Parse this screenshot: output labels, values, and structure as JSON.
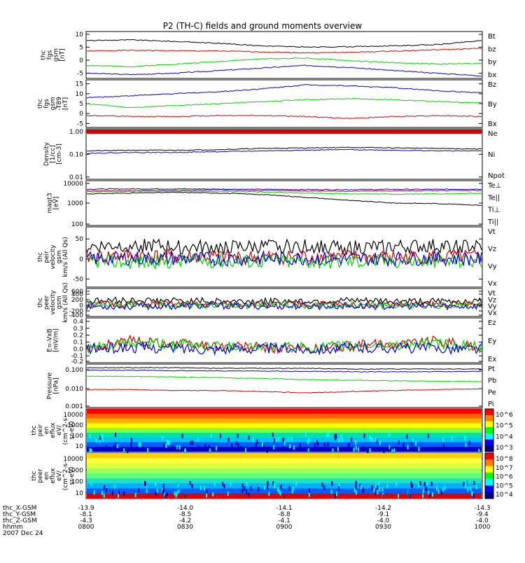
{
  "title": "P2 (TH-C) fields and ground moments overview",
  "chart_data": [
    {
      "type": "line",
      "panel": "fgs-gsm",
      "ylabel_lines": [
        "thc",
        "fgs",
        "gsm",
        "[nT]"
      ],
      "yticks": [
        "10",
        "5",
        "0",
        "-5"
      ],
      "ylim": [
        -7,
        11
      ],
      "series": [
        {
          "name": "Bt",
          "color": "#000000",
          "values": [
            7.5,
            7.8,
            7.2,
            6.5,
            5.5,
            5.0,
            5.2,
            5.5,
            6.0,
            7.5
          ]
        },
        {
          "name": "bz",
          "color": "#d40000",
          "values": [
            3.5,
            3.8,
            3.6,
            3.5,
            3.2,
            2.8,
            3.0,
            3.5,
            4.0,
            4.5
          ]
        },
        {
          "name": "by",
          "color": "#00d400",
          "values": [
            -2.0,
            -2.5,
            -1.5,
            -0.5,
            0.5,
            0.8,
            -0.2,
            -1.0,
            -1.5,
            -1.2
          ]
        },
        {
          "name": "bx",
          "color": "#0000d4",
          "values": [
            -5.0,
            -5.5,
            -5.0,
            -4.0,
            -3.0,
            -2.0,
            -2.8,
            -4.0,
            -5.0,
            -6.0
          ]
        }
      ]
    },
    {
      "type": "line",
      "panel": "fgs-gsm-t89",
      "ylabel_lines": [
        "thc",
        "fgs",
        "gsm",
        "-T89",
        "[nT]"
      ],
      "yticks": [
        "15",
        "10",
        "5",
        "0",
        "-5"
      ],
      "ylim": [
        -7,
        17
      ],
      "series": [
        {
          "name": "Bz",
          "color": "#0000d4",
          "values": [
            8.0,
            9.0,
            10.0,
            11.0,
            12.5,
            14.5,
            14.0,
            13.0,
            11.5,
            10.5
          ]
        },
        {
          "name": "By",
          "color": "#00d400",
          "values": [
            5.0,
            3.0,
            4.0,
            5.0,
            6.0,
            7.0,
            7.5,
            7.0,
            6.0,
            5.5
          ]
        },
        {
          "name": "Bx",
          "color": "#d40000",
          "values": [
            -1.0,
            -1.5,
            -1.5,
            -1.0,
            -1.0,
            -1.5,
            -2.5,
            -1.5,
            -1.0,
            -1.5
          ]
        }
      ]
    },
    {
      "type": "line",
      "panel": "density",
      "ylabel_lines": [
        "Density",
        "[1/cc]",
        "[cm-3]"
      ],
      "yticks": [
        "1.00",
        "0.10",
        "0.01"
      ],
      "ylog": true,
      "ylim": [
        0.008,
        1.3
      ],
      "series": [
        {
          "name": "Ne",
          "color": "#d40000",
          "values": []
        },
        {
          "name": "Ni",
          "color": "#000000",
          "values": [
            0.14,
            0.15,
            0.15,
            0.16,
            0.18,
            0.19,
            0.2,
            0.19,
            0.18,
            0.17
          ]
        },
        {
          "name": "Npot",
          "color": "#0000d4",
          "values": [
            0.11,
            0.12,
            0.12,
            0.13,
            0.14,
            0.15,
            0.16,
            0.15,
            0.14,
            0.14
          ]
        }
      ]
    },
    {
      "type": "line",
      "panel": "temperature",
      "ylabel_lines": [
        "magt3",
        "[eV]"
      ],
      "yticks": [
        "10000",
        "1000",
        "100"
      ],
      "ylog": true,
      "ylim": [
        100,
        10000
      ],
      "series": [
        {
          "name": "Te⊥",
          "color": "#d40000",
          "values": [
            3500,
            3600,
            3700,
            3800,
            3600,
            3500,
            3400,
            3500,
            3600,
            3700
          ]
        },
        {
          "name": "Te||",
          "color": "#000000",
          "values": [
            2600,
            2800,
            3000,
            2800,
            2400,
            1800,
            1300,
            1000,
            950,
            800
          ]
        },
        {
          "name": "Ti⊥",
          "color": "#0000d4",
          "values": [
            4200,
            4300,
            4300,
            4200,
            4100,
            4000,
            4000,
            4100,
            4100,
            4200
          ]
        },
        {
          "name": "Ti||",
          "color": "#00d400",
          "values": [
            3200,
            3300,
            3400,
            3300,
            3100,
            2800,
            2600,
            2500,
            2600,
            2700
          ]
        }
      ]
    },
    {
      "type": "line",
      "panel": "peir-velocity",
      "ylabel_lines": [
        "thc",
        "peir",
        "velocity",
        "gsm",
        "km/s (All Qs)"
      ],
      "yticks": [
        "50",
        "0",
        "-50"
      ],
      "ylim": [
        -70,
        80
      ],
      "series": [
        {
          "name": "Vt",
          "color": "#000000",
          "values": [
            30,
            35,
            30,
            28,
            30,
            32,
            28,
            30,
            32,
            30
          ]
        },
        {
          "name": "Vz",
          "color": "#d40000",
          "values": [
            5,
            8,
            6,
            5,
            4,
            6,
            5,
            4,
            6,
            5
          ]
        },
        {
          "name": "Vy",
          "color": "#00d400",
          "values": [
            -5,
            -8,
            -6,
            -4,
            -5,
            -7,
            -6,
            -5,
            -6,
            -5
          ]
        },
        {
          "name": "Vx",
          "color": "#0000d4",
          "values": [
            0,
            2,
            1,
            0,
            1,
            2,
            0,
            1,
            2,
            0
          ]
        }
      ]
    },
    {
      "type": "line",
      "panel": "peer-velocity",
      "ylabel_lines": [
        "thc",
        "peer",
        "velocity",
        "gsm",
        "km/s (All Qs)"
      ],
      "yticks": [
        "600",
        "400",
        "200",
        "0",
        "-200",
        "-400"
      ],
      "ylim": [
        -400,
        600
      ],
      "series": [
        {
          "name": "Vt",
          "color": "#000000",
          "values": [
            150,
            180,
            160,
            150,
            140,
            150,
            160,
            150,
            140,
            150
          ]
        },
        {
          "name": "Vz",
          "color": "#d40000",
          "values": [
            30,
            40,
            30,
            25,
            30,
            35,
            30,
            30,
            35,
            30
          ]
        },
        {
          "name": "Vy",
          "color": "#00d400",
          "values": [
            0,
            10,
            0,
            -10,
            0,
            5,
            0,
            -5,
            0,
            5
          ]
        },
        {
          "name": "Vx",
          "color": "#0000d4",
          "values": [
            -30,
            -40,
            -30,
            -20,
            -30,
            -35,
            -30,
            -30,
            -35,
            -30
          ]
        }
      ]
    },
    {
      "type": "line",
      "panel": "efield",
      "ylabel_lines": [
        "E=-VxB",
        "[mV/m]"
      ],
      "yticks": [
        "0.4",
        "0.3",
        "0.2",
        "0.1",
        "0.0",
        "-0.1",
        "-0.2"
      ],
      "ylim": [
        -0.2,
        0.45
      ],
      "series": [
        {
          "name": "Ez",
          "color": "#d40000",
          "values": [
            0.0,
            0.12,
            0.08,
            0.04,
            0.02,
            0.0,
            0.04,
            0.08,
            0.12,
            0.02
          ]
        },
        {
          "name": "Ey",
          "color": "#00d400",
          "values": [
            0.0,
            0.08,
            0.06,
            0.04,
            0.03,
            0.02,
            0.04,
            0.06,
            0.08,
            0.02
          ]
        },
        {
          "name": "Ex",
          "color": "#0000d4",
          "values": [
            0.0,
            0.02,
            0.01,
            0.0,
            0.01,
            0.0,
            0.01,
            0.02,
            0.01,
            0.0
          ]
        }
      ]
    },
    {
      "type": "line",
      "panel": "pressure",
      "ylabel_lines": [
        "Pressure",
        "[nPa]"
      ],
      "yticks": [
        "0.100",
        "0.010",
        "0.001"
      ],
      "ylog": true,
      "ylim": [
        0.001,
        0.2
      ],
      "series": [
        {
          "name": "Pt",
          "color": "#000000",
          "values": [
            0.13,
            0.13,
            0.13,
            0.12,
            0.12,
            0.12,
            0.11,
            0.11,
            0.11,
            0.11
          ]
        },
        {
          "name": "Pb",
          "color": "#d40000",
          "values": [
            0.009,
            0.009,
            0.008,
            0.008,
            0.007,
            0.006,
            0.007,
            0.008,
            0.009,
            0.01
          ]
        },
        {
          "name": "Pe",
          "color": "#00d400",
          "values": [
            0.045,
            0.045,
            0.042,
            0.038,
            0.035,
            0.03,
            0.028,
            0.026,
            0.025,
            0.024
          ]
        },
        {
          "name": "Pi",
          "color": "#0000d4",
          "values": [
            0.095,
            0.095,
            0.09,
            0.088,
            0.085,
            0.082,
            0.08,
            0.078,
            0.08,
            0.082
          ]
        }
      ]
    },
    {
      "type": "heatmap",
      "panel": "peir-en-eflux",
      "ylabel_lines": [
        "thc",
        "peir",
        "en",
        "eflux",
        "eV/",
        "(cm^2-s-",
        "sr-eV)"
      ],
      "yticks": [
        "10000",
        "1000",
        "100",
        "10"
      ],
      "colorbar_ticks": [
        "10^6",
        "10^5",
        "10^4",
        "10^3"
      ]
    },
    {
      "type": "heatmap",
      "panel": "peer-en-eflux",
      "ylabel_lines": [
        "thc",
        "peer",
        "en",
        "eflux",
        "eV/",
        "(cm^2-s-",
        "sr-eV)"
      ],
      "yticks": [
        "10000",
        "1000",
        "100",
        "10"
      ],
      "colorbar_ticks": [
        "10^8",
        "10^7",
        "10^6",
        "10^5",
        "10^4"
      ]
    }
  ],
  "xaxis": {
    "rows": [
      {
        "label": "thc_X-GSM",
        "values": [
          "-13.9",
          "-14.0",
          "-14.1",
          "-14.2",
          "-14.3"
        ]
      },
      {
        "label": "thc_Y-GSM",
        "values": [
          "-8.1",
          "-8.5",
          "-8.8",
          "-9.1",
          "-9.4"
        ]
      },
      {
        "label": "thc_Z-GSM",
        "values": [
          "-4.3",
          "-4.2",
          "-4.1",
          "-4.0",
          "-4.0"
        ]
      },
      {
        "label": "hhmm",
        "values": [
          "0800",
          "0830",
          "0900",
          "0930",
          "1000"
        ]
      }
    ],
    "date": "2007 Dec 24"
  }
}
